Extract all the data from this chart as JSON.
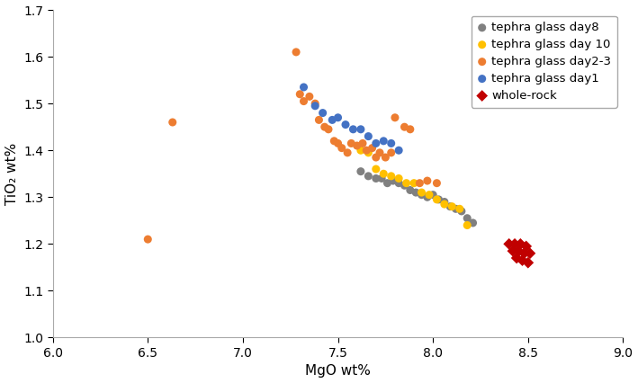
{
  "title": "",
  "xlabel": "MgO wt%",
  "ylabel": "TiO₂ wt%",
  "xlim": [
    6,
    9
  ],
  "ylim": [
    1.0,
    1.7
  ],
  "xticks": [
    6,
    6.5,
    7,
    7.5,
    8,
    8.5,
    9
  ],
  "yticks": [
    1.0,
    1.1,
    1.2,
    1.3,
    1.4,
    1.5,
    1.6,
    1.7
  ],
  "day1": {
    "color": "#4472C4",
    "label": "tephra glass day1",
    "marker": "o",
    "x": [
      7.32,
      7.38,
      7.42,
      7.47,
      7.5,
      7.54,
      7.58,
      7.62,
      7.66,
      7.7,
      7.74,
      7.78,
      7.82
    ],
    "y": [
      1.535,
      1.495,
      1.48,
      1.465,
      1.47,
      1.455,
      1.445,
      1.445,
      1.43,
      1.415,
      1.42,
      1.415,
      1.4
    ]
  },
  "day23": {
    "color": "#ED7D31",
    "label": "tephra glass day2-3",
    "marker": "o",
    "x": [
      6.5,
      6.63,
      7.28,
      7.3,
      7.32,
      7.35,
      7.38,
      7.4,
      7.43,
      7.45,
      7.48,
      7.5,
      7.52,
      7.55,
      7.57,
      7.6,
      7.63,
      7.65,
      7.68,
      7.7,
      7.72,
      7.75,
      7.78,
      7.8,
      7.85,
      7.88,
      7.93,
      7.97,
      8.02
    ],
    "y": [
      1.21,
      1.46,
      1.61,
      1.52,
      1.505,
      1.515,
      1.5,
      1.465,
      1.45,
      1.445,
      1.42,
      1.415,
      1.405,
      1.395,
      1.415,
      1.41,
      1.415,
      1.4,
      1.405,
      1.385,
      1.395,
      1.385,
      1.395,
      1.47,
      1.45,
      1.445,
      1.33,
      1.335,
      1.33
    ]
  },
  "day8": {
    "color": "#808080",
    "label": "tephra glass day8",
    "marker": "o",
    "x": [
      7.62,
      7.66,
      7.7,
      7.73,
      7.76,
      7.79,
      7.82,
      7.85,
      7.88,
      7.91,
      7.94,
      7.97,
      8.0,
      8.03,
      8.06,
      8.09,
      8.12,
      8.15,
      8.18,
      8.21
    ],
    "y": [
      1.355,
      1.345,
      1.34,
      1.34,
      1.33,
      1.335,
      1.33,
      1.325,
      1.315,
      1.31,
      1.305,
      1.3,
      1.305,
      1.295,
      1.29,
      1.28,
      1.275,
      1.27,
      1.255,
      1.245
    ]
  },
  "day10": {
    "color": "#FFC000",
    "label": "tephra glass day 10",
    "marker": "o",
    "x": [
      7.62,
      7.66,
      7.7,
      7.74,
      7.78,
      7.82,
      7.86,
      7.9,
      7.94,
      7.98,
      8.02,
      8.06,
      8.1,
      8.14,
      8.18
    ],
    "y": [
      1.4,
      1.395,
      1.36,
      1.35,
      1.345,
      1.34,
      1.33,
      1.33,
      1.31,
      1.305,
      1.295,
      1.285,
      1.28,
      1.275,
      1.24
    ]
  },
  "wholerock": {
    "color": "#C00000",
    "label": "whole-rock",
    "marker": "D",
    "x": [
      8.4,
      8.43,
      8.46,
      8.49,
      8.42,
      8.45,
      8.48,
      8.51,
      8.44,
      8.47,
      8.5
    ],
    "y": [
      1.2,
      1.2,
      1.2,
      1.195,
      1.185,
      1.185,
      1.18,
      1.18,
      1.17,
      1.165,
      1.16
    ]
  },
  "legend_fontsize": 9.5,
  "axis_fontsize": 11,
  "tick_fontsize": 10,
  "markersize": 6.5
}
